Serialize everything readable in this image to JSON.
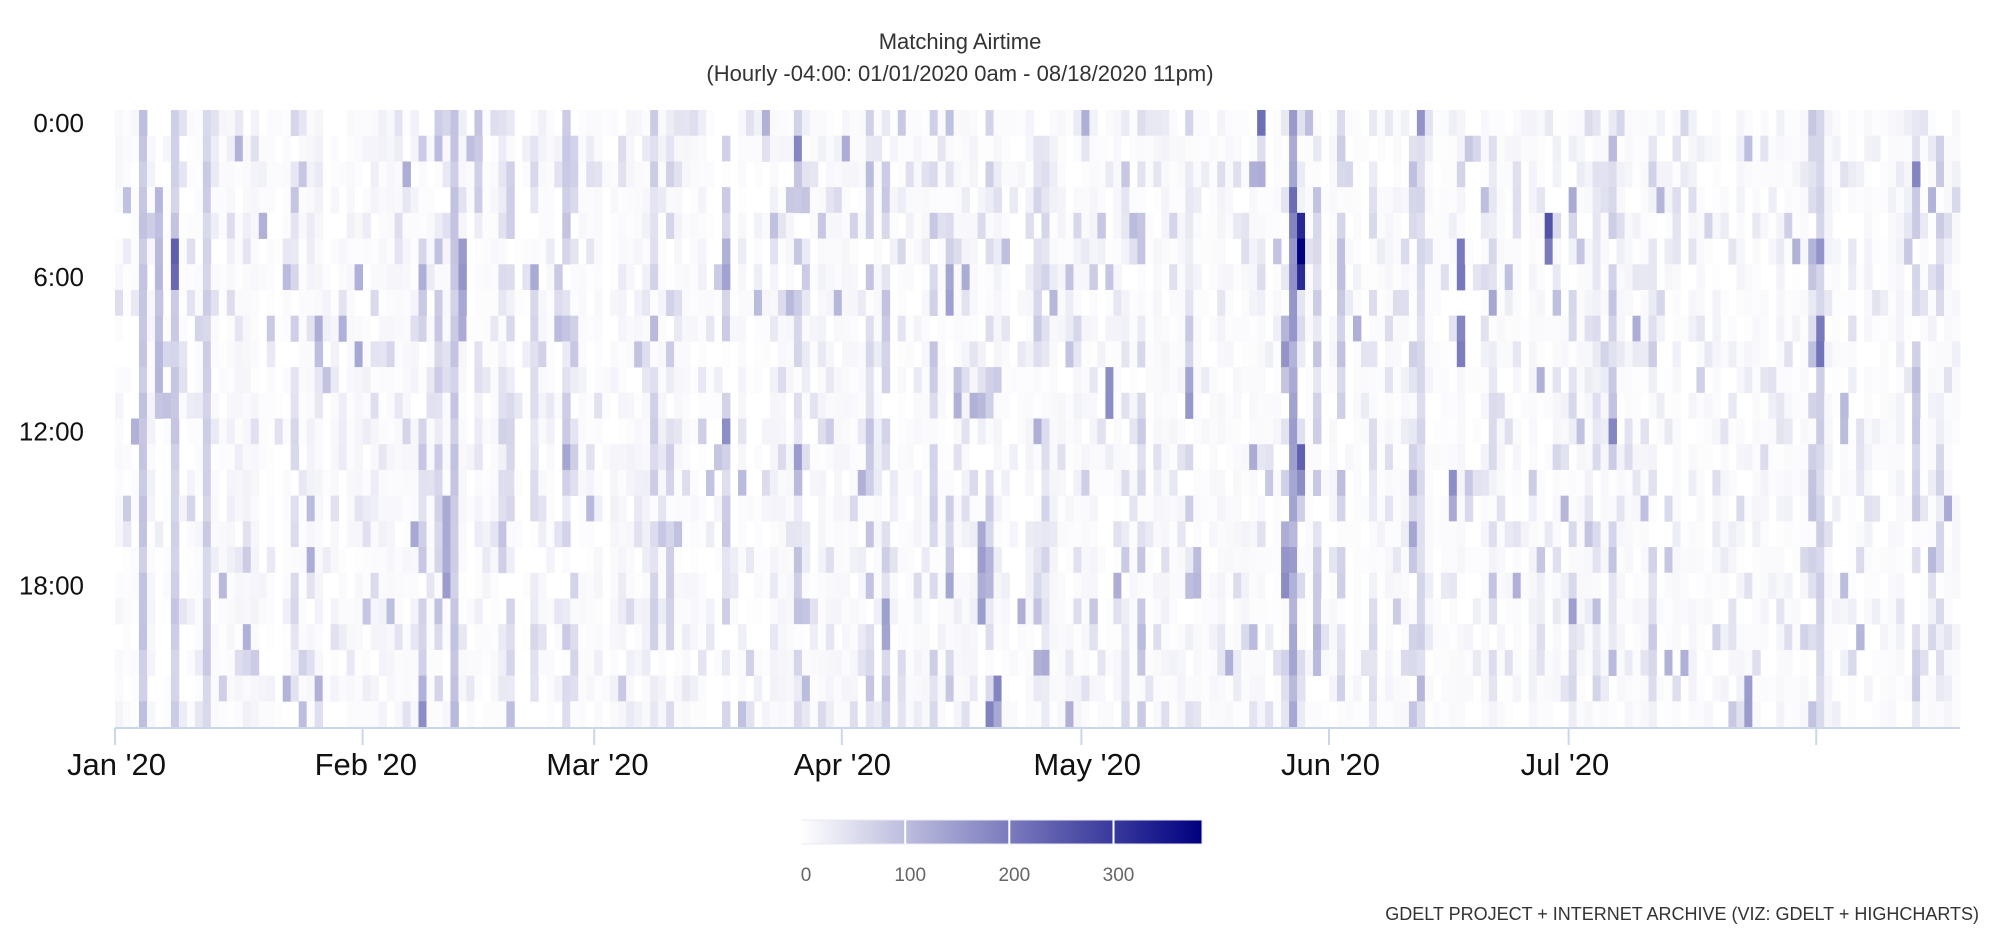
{
  "chart_data": {
    "type": "heatmap",
    "title": "Matching Airtime",
    "subtitle": "(Hourly -04:00: 01/01/2020 0am - 08/18/2020 11pm)",
    "credit": "GDELT PROJECT + INTERNET ARCHIVE (VIZ: GDELT + HIGHCHARTS)",
    "x_axis": {
      "start_date": "2020-01-01",
      "end_date": "2020-08-18",
      "tick_labels": [
        {
          "date": "2020-01-01",
          "label": "Jan '20"
        },
        {
          "date": "2020-02-01",
          "label": "Feb '20"
        },
        {
          "date": "2020-03-01",
          "label": "Mar '20"
        },
        {
          "date": "2020-04-01",
          "label": "Apr '20"
        },
        {
          "date": "2020-05-01",
          "label": "May '20"
        },
        {
          "date": "2020-06-01",
          "label": "Jun '20"
        },
        {
          "date": "2020-07-01",
          "label": "Jul '20"
        },
        {
          "date": "2020-08-01",
          "label": ""
        }
      ]
    },
    "y_axis": {
      "categories": [
        "0:00",
        "1:00",
        "2:00",
        "3:00",
        "4:00",
        "5:00",
        "6:00",
        "7:00",
        "8:00",
        "9:00",
        "10:00",
        "11:00",
        "12:00",
        "13:00",
        "14:00",
        "15:00",
        "16:00",
        "17:00",
        "18:00",
        "19:00",
        "20:00",
        "21:00",
        "22:00",
        "23:00"
      ],
      "tick_labels": [
        "0:00",
        "6:00",
        "12:00",
        "18:00"
      ],
      "reversed": true
    },
    "color_axis": {
      "min": 0,
      "max": 385,
      "min_color": "#ffffff",
      "max_color": "#000080",
      "tick_labels": [
        "0",
        "100",
        "200",
        "300"
      ]
    },
    "hot_spots": [
      {
        "date": "2020-01-04",
        "hours": [
          0,
          23
        ],
        "level": 90
      },
      {
        "date": "2020-01-08",
        "hours": [
          0,
          23
        ],
        "level": 80
      },
      {
        "date": "2020-01-08",
        "hours": [
          5,
          6
        ],
        "level": 230
      },
      {
        "date": "2020-01-06",
        "hours": [
          3,
          11
        ],
        "level": 110
      },
      {
        "date": "2020-01-12",
        "hours": [
          0,
          23
        ],
        "level": 75
      },
      {
        "date": "2020-02-12",
        "hours": [
          0,
          23
        ],
        "level": 85
      },
      {
        "date": "2020-02-13",
        "hours": [
          5,
          8
        ],
        "level": 160
      },
      {
        "date": "2020-02-11",
        "hours": [
          15,
          18
        ],
        "level": 140
      },
      {
        "date": "2020-02-15",
        "hours": [
          0,
          3
        ],
        "level": 80
      },
      {
        "date": "2020-04-14",
        "hours": [
          6,
          7
        ],
        "level": 180
      },
      {
        "date": "2020-04-18",
        "hours": [
          16,
          19
        ],
        "level": 150
      },
      {
        "date": "2020-04-20",
        "hours": [
          22,
          23
        ],
        "level": 170
      },
      {
        "date": "2020-05-23",
        "hours": [
          0,
          0
        ],
        "level": 200
      },
      {
        "date": "2020-05-27",
        "hours": [
          0,
          23
        ],
        "level": 140
      },
      {
        "date": "2020-05-27",
        "hours": [
          3,
          8
        ],
        "level": 210
      },
      {
        "date": "2020-05-28",
        "hours": [
          4,
          6
        ],
        "level": 380
      },
      {
        "date": "2020-05-28",
        "hours": [
          13,
          14
        ],
        "level": 230
      },
      {
        "date": "2020-05-26",
        "hours": [
          16,
          18
        ],
        "level": 160
      },
      {
        "date": "2020-06-17",
        "hours": [
          8,
          9
        ],
        "level": 230
      },
      {
        "date": "2020-06-17",
        "hours": [
          5,
          6
        ],
        "level": 200
      },
      {
        "date": "2020-06-16",
        "hours": [
          14,
          15
        ],
        "level": 170
      },
      {
        "date": "2020-06-28",
        "hours": [
          4,
          5
        ],
        "level": 240
      },
      {
        "date": "2020-06-12",
        "hours": [
          0,
          23
        ],
        "level": 60
      },
      {
        "date": "2020-08-01",
        "hours": [
          8,
          9
        ],
        "level": 230
      },
      {
        "date": "2020-08-01",
        "hours": [
          0,
          23
        ],
        "level": 70
      },
      {
        "date": "2020-07-23",
        "hours": [
          22,
          23
        ],
        "level": 140
      },
      {
        "date": "2020-05-04",
        "hours": [
          10,
          11
        ],
        "level": 180
      }
    ]
  }
}
